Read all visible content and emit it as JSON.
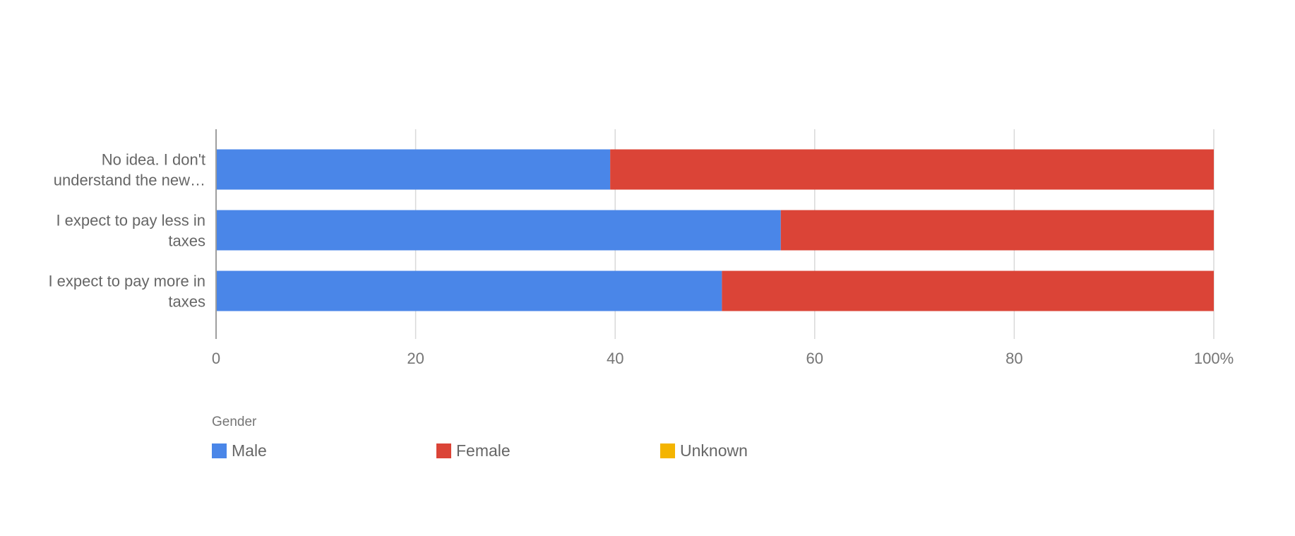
{
  "chart_data": {
    "type": "bar",
    "orientation": "horizontal",
    "stacked": true,
    "stack_mode": "percent",
    "categories": [
      "No idea. I don't understand the new…",
      "I expect to pay less in taxes",
      "I expect to pay more in taxes"
    ],
    "category_lines": [
      [
        "No idea. I don't",
        "understand the new…"
      ],
      [
        "I expect to pay less in",
        "taxes"
      ],
      [
        "I expect to pay more in",
        "taxes"
      ]
    ],
    "series": [
      {
        "name": "Male",
        "color": "#4A86E8",
        "values": [
          39.5,
          56.6,
          50.7
        ]
      },
      {
        "name": "Female",
        "color": "#DB4437",
        "values": [
          60.5,
          43.4,
          49.3
        ]
      },
      {
        "name": "Unknown",
        "color": "#F4B400",
        "values": [
          0,
          0,
          0
        ]
      }
    ],
    "xlim": [
      0,
      100
    ],
    "x_ticks": [
      0,
      20,
      40,
      60,
      80,
      100
    ],
    "x_tick_labels": [
      "0",
      "20",
      "40",
      "60",
      "80",
      "100%"
    ],
    "grid": true,
    "legend_title": "Gender",
    "legend_position": "bottom-left",
    "title": "",
    "xlabel": "",
    "ylabel": ""
  }
}
